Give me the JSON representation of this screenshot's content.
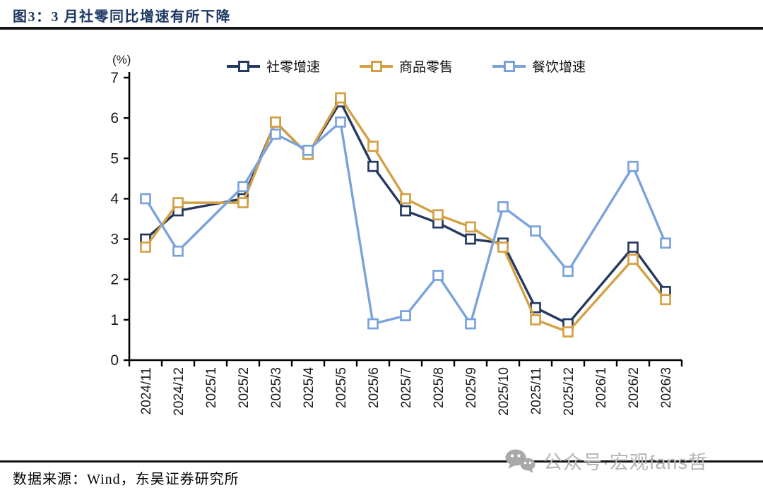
{
  "chart_data": {
    "type": "line",
    "title": "图3：3 月社零同比增速有所下降",
    "unit_label": "(%)",
    "xlabel": "",
    "ylabel": "(%)",
    "ylim": [
      0,
      7
    ],
    "yticks": [
      0,
      1,
      2,
      3,
      4,
      5,
      6,
      7
    ],
    "grid": false,
    "legend_position": "top",
    "marker_style": "hollow-square",
    "axis_color": "#000000",
    "tick_label_color": "#1a1a1a",
    "categories": [
      "2024/11",
      "2024/12",
      "2025/1",
      "2025/2",
      "2025/3",
      "2025/4",
      "2025/5",
      "2025/6",
      "2025/7",
      "2025/8",
      "2025/9",
      "2025/10",
      "2025/11",
      "2025/12",
      "2026/1",
      "2026/2",
      "2026/3"
    ],
    "series": [
      {
        "name": "社零增速",
        "color": "#25395F",
        "values": [
          3.0,
          3.7,
          null,
          4.0,
          5.9,
          5.1,
          6.4,
          4.8,
          3.7,
          3.4,
          3.0,
          2.9,
          1.3,
          0.9,
          null,
          2.8,
          1.7
        ]
      },
      {
        "name": "商品零售",
        "color": "#D4A044",
        "values": [
          2.8,
          3.9,
          null,
          3.9,
          5.9,
          5.1,
          6.5,
          5.3,
          4.0,
          3.6,
          3.3,
          2.8,
          1.0,
          0.7,
          null,
          2.5,
          1.5
        ]
      },
      {
        "name": "餐饮增速",
        "color": "#7AA3DC",
        "values": [
          4.0,
          2.7,
          null,
          4.3,
          5.6,
          5.2,
          5.9,
          0.9,
          1.1,
          2.1,
          0.9,
          3.8,
          3.2,
          2.2,
          null,
          4.8,
          2.9
        ]
      }
    ]
  },
  "footer": {
    "source": "数据来源：Wind，东吴证券研究所",
    "watermark": "公众号·宏观fans哲",
    "watermark_icon": "wechat-icon"
  },
  "colors": {
    "title": "#1F3864",
    "rule": "#151515",
    "watermark": "#B5B5B5"
  }
}
